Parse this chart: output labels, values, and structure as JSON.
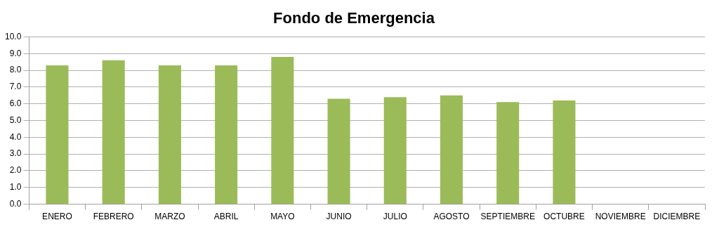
{
  "chart_data": {
    "type": "bar",
    "title": "Fondo de Emergencia",
    "categories": [
      "ENERO",
      "FEBRERO",
      "MARZO",
      "ABRIL",
      "MAYO",
      "JUNIO",
      "JULIO",
      "AGOSTO",
      "SEPTIEMBRE",
      "OCTUBRE",
      "NOVIEMBRE",
      "DICIEMBRE"
    ],
    "values": [
      8.3,
      8.6,
      8.3,
      8.3,
      8.8,
      6.3,
      6.4,
      6.5,
      6.1,
      6.2,
      null,
      null
    ],
    "color": "#9bbb59",
    "ylim": [
      0,
      10
    ],
    "yticks": [
      {
        "value": 0,
        "label": "0.0"
      },
      {
        "value": 1,
        "label": "1.0"
      },
      {
        "value": 2,
        "label": "2.0"
      },
      {
        "value": 3,
        "label": "3.0"
      },
      {
        "value": 4,
        "label": "4.0"
      },
      {
        "value": 5,
        "label": "5.0"
      },
      {
        "value": 6,
        "label": "6.0"
      },
      {
        "value": 7,
        "label": "7.0"
      },
      {
        "value": 8,
        "label": "8.0"
      },
      {
        "value": 9,
        "label": "9.0"
      },
      {
        "value": 10,
        "label": "10.0"
      }
    ],
    "grid": "y"
  }
}
